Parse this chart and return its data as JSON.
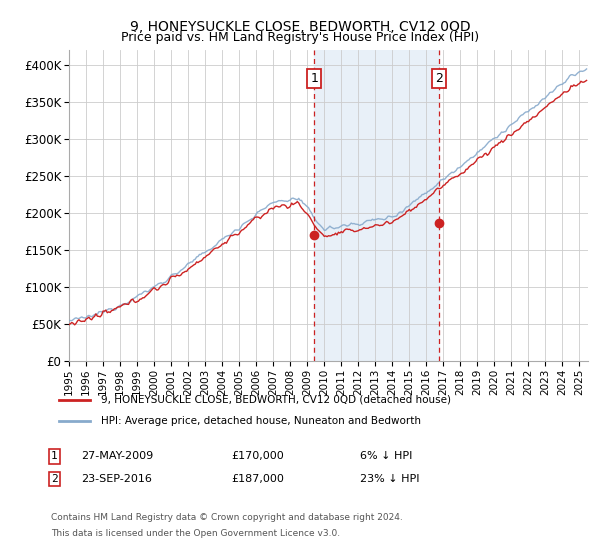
{
  "title": "9, HONEYSUCKLE CLOSE, BEDWORTH, CV12 0QD",
  "subtitle": "Price paid vs. HM Land Registry's House Price Index (HPI)",
  "ylim": [
    0,
    420000
  ],
  "yticks": [
    0,
    50000,
    100000,
    150000,
    200000,
    250000,
    300000,
    350000,
    400000
  ],
  "ytick_labels": [
    "£0",
    "£50K",
    "£100K",
    "£150K",
    "£200K",
    "£250K",
    "£300K",
    "£350K",
    "£400K"
  ],
  "sale1_year": 2009.405,
  "sale1_price": 170000,
  "sale1_label": "1",
  "sale2_year": 2016.728,
  "sale2_price": 187000,
  "sale2_label": "2",
  "hpi_color": "#88aacc",
  "price_color": "#cc2222",
  "dashed_line_color": "#cc2222",
  "background_fill_color": "#e8f0f8",
  "legend_label_price": "9, HONEYSUCKLE CLOSE, BEDWORTH, CV12 0QD (detached house)",
  "legend_label_hpi": "HPI: Average price, detached house, Nuneaton and Bedworth",
  "footnote1": "Contains HM Land Registry data © Crown copyright and database right 2024.",
  "footnote2": "This data is licensed under the Open Government Licence v3.0.",
  "xlim_left": 1995.0,
  "xlim_right": 2025.5
}
